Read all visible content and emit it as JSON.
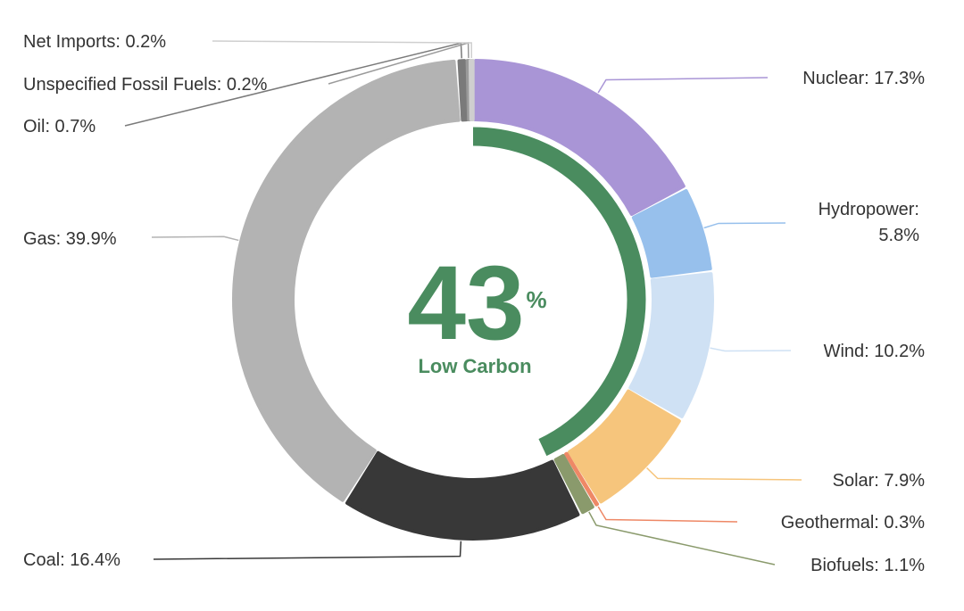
{
  "chart_data": {
    "type": "donut",
    "center": {
      "value": "43",
      "unit": "%",
      "label": "Low Carbon"
    },
    "low_carbon_share": 43,
    "low_carbon_color": "#4a8c5f",
    "slices": [
      {
        "name": "Nuclear",
        "value": 17.3,
        "label": "Nuclear: 17.3%",
        "color": "#a995d6"
      },
      {
        "name": "Hydropower",
        "value": 5.8,
        "label_lines": [
          "Hydropower:",
          "5.8%"
        ],
        "color": "#97c0ec"
      },
      {
        "name": "Wind",
        "value": 10.2,
        "label": "Wind: 10.2%",
        "color": "#cfe1f4"
      },
      {
        "name": "Solar",
        "value": 7.9,
        "label": "Solar: 7.9%",
        "color": "#f6c57c"
      },
      {
        "name": "Geothermal",
        "value": 0.3,
        "label": "Geothermal: 0.3%",
        "color": "#ee8866"
      },
      {
        "name": "Biofuels",
        "value": 1.1,
        "label": "Biofuels: 1.1%",
        "color": "#8a9a6c"
      },
      {
        "name": "Coal",
        "value": 16.4,
        "label": "Coal: 16.4%",
        "color": "#383838"
      },
      {
        "name": "Gas",
        "value": 39.9,
        "label": "Gas: 39.9%",
        "color": "#b3b3b3"
      },
      {
        "name": "Oil",
        "value": 0.7,
        "label": "Oil: 0.7%",
        "color": "#7a7a7a"
      },
      {
        "name": "Unspecified Fossil Fuels",
        "value": 0.2,
        "label": "Unspecified Fossil Fuels: 0.2%",
        "color": "#9a9a9a"
      },
      {
        "name": "Net Imports",
        "value": 0.2,
        "label": "Net Imports: 0.2%",
        "color": "#cfcfcf"
      }
    ]
  }
}
